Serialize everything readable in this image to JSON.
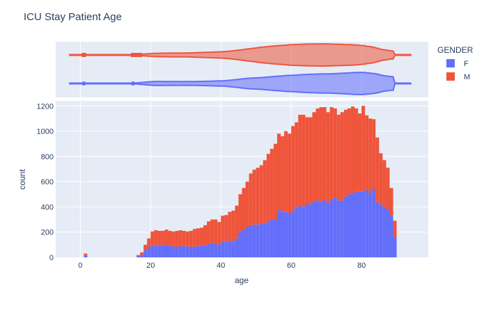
{
  "chart_data": {
    "type": "bar",
    "title": "ICU Stay Patient Age",
    "xlabel": "age",
    "ylabel": "count",
    "barmode": "stack",
    "xlim": [
      -7,
      99
    ],
    "ylim": [
      0,
      1240
    ],
    "x_ticks": [
      0,
      20,
      40,
      60,
      80
    ],
    "y_ticks": [
      0,
      200,
      400,
      600,
      800,
      1000,
      1200
    ],
    "colors": {
      "F": "#636efa",
      "M": "#ef553b",
      "plot_bg": "#e5ecf6",
      "grid": "#ffffff"
    },
    "legend": {
      "title": "GENDER",
      "position": "right",
      "entries": [
        "F",
        "M"
      ]
    },
    "bin_start": 0,
    "bin_width": 1,
    "series": [
      {
        "name": "F",
        "values": [
          0,
          15,
          0,
          0,
          0,
          0,
          0,
          0,
          0,
          0,
          0,
          0,
          0,
          0,
          0,
          0,
          8,
          20,
          55,
          80,
          95,
          95,
          100,
          95,
          100,
          95,
          85,
          80,
          95,
          85,
          90,
          80,
          85,
          90,
          95,
          95,
          105,
          110,
          110,
          100,
          130,
          125,
          130,
          130,
          150,
          200,
          220,
          240,
          255,
          260,
          260,
          265,
          270,
          280,
          300,
          300,
          380,
          360,
          360,
          350,
          370,
          395,
          410,
          400,
          430,
          420,
          440,
          450,
          440,
          455,
          430,
          460,
          470,
          450,
          450,
          480,
          500,
          505,
          520,
          520,
          520,
          535,
          510,
          540,
          435,
          420,
          400,
          380,
          330,
          160
        ],
        "x_start": 0
      },
      {
        "name": "M",
        "values": [
          0,
          15,
          0,
          0,
          0,
          0,
          0,
          0,
          0,
          0,
          0,
          0,
          0,
          0,
          0,
          0,
          10,
          20,
          45,
          70,
          110,
          120,
          110,
          115,
          120,
          115,
          120,
          130,
          120,
          125,
          115,
          130,
          140,
          140,
          140,
          160,
          180,
          190,
          190,
          180,
          200,
          210,
          230,
          240,
          260,
          300,
          330,
          360,
          410,
          435,
          450,
          465,
          500,
          540,
          560,
          600,
          600,
          600,
          640,
          630,
          670,
          675,
          720,
          730,
          680,
          690,
          710,
          730,
          750,
          735,
          720,
          730,
          710,
          680,
          700,
          690,
          680,
          690,
          660,
          620,
          680,
          590,
          590,
          555,
          515,
          405,
          370,
          330,
          220,
          130
        ],
        "x_start": 0
      }
    ],
    "violin": {
      "F": {
        "min": 0,
        "q1": 52,
        "median": 68,
        "q3": 80,
        "max": 90,
        "outliers": [
          1,
          15
        ]
      },
      "M": {
        "min": 0,
        "q1": 50,
        "median": 66,
        "q3": 78,
        "max": 90,
        "outliers": [
          1,
          15,
          16,
          17
        ]
      }
    }
  }
}
